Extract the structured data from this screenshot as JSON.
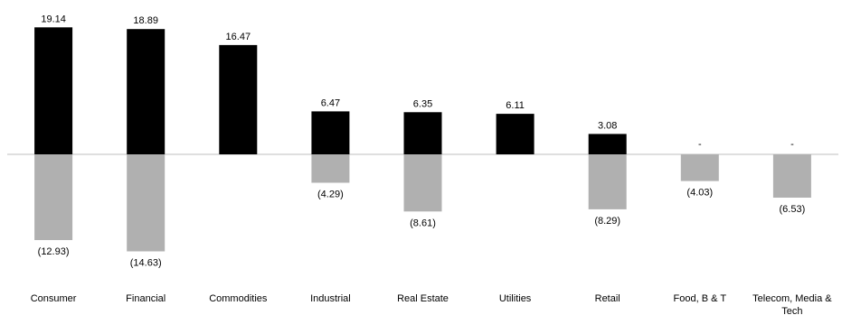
{
  "chart_data": {
    "type": "bar",
    "categories": [
      "Consumer",
      "Financial",
      "Commodities",
      "Industrial",
      "Real Estate",
      "Utilities",
      "Retail",
      "Food, B & T",
      "Telecom, Media & Tech"
    ],
    "series": [
      {
        "values": [
          19.14,
          18.89,
          16.47,
          6.47,
          6.35,
          6.11,
          3.08,
          0,
          0
        ],
        "labels": [
          "19.14",
          "18.89",
          "16.47",
          "6.47",
          "6.35",
          "6.11",
          "3.08",
          "-",
          "-"
        ],
        "color": "#000000"
      },
      {
        "values": [
          -12.93,
          -14.63,
          0,
          -4.29,
          -8.61,
          0,
          -8.29,
          -4.03,
          -6.53
        ],
        "labels": [
          "(12.93)",
          "(14.63)",
          "",
          "(4.29)",
          "(8.61)",
          "",
          "(8.29)",
          "(4.03)",
          "(6.53)"
        ],
        "color": "#b0b0b0"
      }
    ],
    "ylim": [
      -14.63,
      19.14
    ],
    "grid": false,
    "legend": "none",
    "zero_line_color": "#bfbfbf"
  }
}
